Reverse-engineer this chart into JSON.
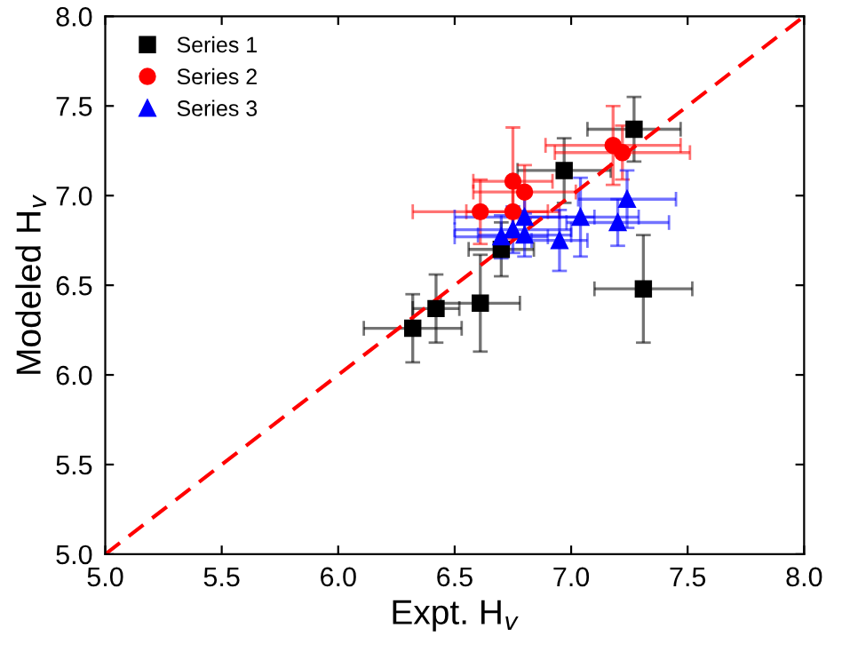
{
  "chart_data": {
    "type": "scatter",
    "xlabel": "Expt. H$_{v}$",
    "ylabel": "Modeled H$_{v}$",
    "xlim": [
      5,
      8
    ],
    "ylim": [
      5,
      8
    ],
    "xticks": [
      {
        "value": 5,
        "label": "5.0"
      },
      {
        "value": 5.5,
        "label": "5.5"
      },
      {
        "value": 6,
        "label": "6.0"
      },
      {
        "value": 6.5,
        "label": "6.5"
      },
      {
        "value": 7,
        "label": "7.0"
      },
      {
        "value": 7.5,
        "label": "7.5"
      },
      {
        "value": 8,
        "label": "8.0"
      }
    ],
    "yticks": [
      {
        "value": 5,
        "label": "5.0"
      },
      {
        "value": 5.5,
        "label": "5.5"
      },
      {
        "value": 6,
        "label": "6.0"
      },
      {
        "value": 6.5,
        "label": "6.5"
      },
      {
        "value": 7,
        "label": "7.0"
      },
      {
        "value": 7.5,
        "label": "7.5"
      },
      {
        "value": 8,
        "label": "8.0"
      }
    ],
    "grid": false,
    "legend": "top left",
    "series": [
      {
        "name": "Series 1",
        "color": "#000000",
        "marker": "square",
        "x": [
          7.27,
          6.97,
          6.7,
          7.31,
          6.32,
          6.42,
          6.61
        ],
        "values": [
          7.37,
          7.14,
          6.7,
          6.48,
          6.26,
          6.37,
          6.4
        ],
        "xerrors": [
          0.2,
          0.2,
          0.14,
          0.21,
          0.21,
          0.1,
          0.17
        ],
        "errors": [
          0.18,
          0.18,
          0.15,
          0.3,
          0.19,
          0.19,
          0.27
        ]
      },
      {
        "name": "Series 2",
        "color": "#ff0000",
        "marker": "circle",
        "x": [
          7.18,
          7.22,
          6.75,
          6.8,
          6.61,
          6.75
        ],
        "values": [
          7.28,
          7.24,
          7.08,
          7.02,
          6.91,
          6.91
        ],
        "xerrors": [
          0.29,
          0.29,
          0.17,
          0.22,
          0.29,
          0.2
        ],
        "errors": [
          0.22,
          0.15,
          0.3,
          0.15,
          0.18,
          0.15
        ]
      },
      {
        "name": "Series 3",
        "color": "#0000ff",
        "marker": "triangle",
        "x": [
          7.24,
          7.04,
          7.2,
          6.8,
          6.75,
          6.7,
          6.8,
          6.95
        ],
        "values": [
          6.98,
          6.88,
          6.85,
          6.88,
          6.81,
          6.77,
          6.78,
          6.75
        ],
        "xerrors": [
          0.21,
          0.25,
          0.22,
          0.3,
          0.25,
          0.2,
          0.2,
          0.12
        ],
        "errors": [
          0.16,
          0.22,
          0.13,
          0.12,
          0.13,
          0.12,
          0.12,
          0.17
        ]
      },
      {
        "type": "line",
        "color": "#ff0000",
        "line_style": "dashed",
        "marker": "none",
        "x": [
          5,
          8
        ],
        "values": [
          5,
          8
        ]
      }
    ]
  }
}
